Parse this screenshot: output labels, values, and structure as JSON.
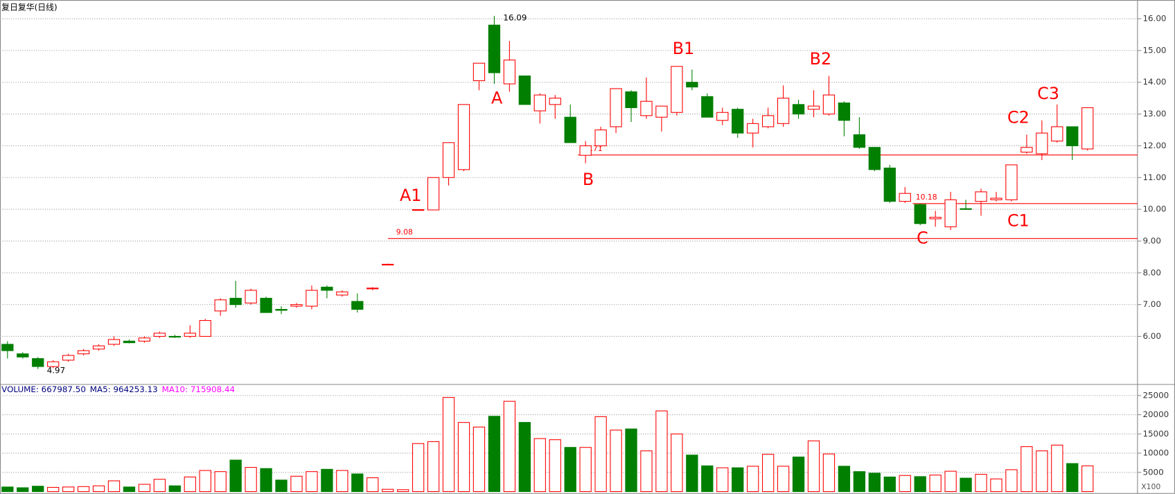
{
  "chart_data": {
    "type": "candlestick",
    "title": "复日复华(日线)",
    "open": [
      5.75,
      5.45,
      5.3,
      5.05,
      5.25,
      5.45,
      5.6,
      5.75,
      5.85,
      5.85,
      6.0,
      6.0,
      6.0,
      6.0,
      6.8,
      7.2,
      7.05,
      7.2,
      6.85,
      6.95,
      6.95,
      7.55,
      7.3,
      7.1,
      7.5,
      8.27,
      null,
      9.98,
      9.98,
      11.0,
      11.25,
      14.05,
      15.8,
      13.95,
      14.2,
      13.1,
      13.3,
      12.9,
      11.7,
      12.0,
      12.6,
      13.7,
      12.95,
      12.9,
      13.05,
      14.0,
      13.55,
      12.8,
      13.15,
      12.4,
      12.6,
      12.7,
      13.3,
      13.15,
      13.0,
      13.35,
      12.35,
      11.95,
      11.3,
      10.25,
      10.15,
      9.7,
      9.45,
      10.02,
      10.25,
      10.3,
      10.3,
      11.8,
      11.75,
      12.15,
      12.6,
      11.9
    ],
    "high": [
      5.85,
      5.5,
      5.35,
      5.25,
      5.45,
      5.6,
      5.75,
      6.0,
      5.9,
      6.0,
      6.15,
      6.05,
      6.35,
      6.55,
      7.2,
      7.75,
      7.5,
      7.25,
      6.95,
      7.05,
      7.6,
      7.6,
      7.45,
      7.35,
      7.55,
      8.29,
      null,
      10.0,
      11.0,
      12.1,
      13.3,
      14.6,
      16.09,
      15.3,
      14.2,
      13.65,
      13.6,
      13.3,
      12.15,
      12.6,
      13.8,
      13.75,
      14.15,
      13.25,
      14.5,
      14.4,
      13.65,
      13.2,
      13.2,
      12.85,
      13.2,
      13.9,
      13.45,
      13.75,
      14.2,
      13.4,
      12.9,
      11.95,
      11.4,
      10.7,
      10.18,
      9.95,
      10.55,
      10.3,
      10.65,
      10.55,
      11.4,
      12.35,
      12.8,
      13.3,
      12.6,
      13.2
    ],
    "low": [
      5.3,
      5.3,
      4.97,
      5.0,
      5.2,
      5.4,
      5.55,
      5.7,
      5.78,
      5.8,
      5.95,
      5.95,
      5.95,
      6.0,
      6.65,
      6.9,
      7.0,
      6.75,
      6.7,
      6.9,
      6.85,
      7.2,
      7.25,
      6.75,
      7.45,
      8.25,
      null,
      9.96,
      9.98,
      10.75,
      11.2,
      13.75,
      13.95,
      13.7,
      13.3,
      12.7,
      12.85,
      12.1,
      11.45,
      11.95,
      12.4,
      12.75,
      12.85,
      12.45,
      12.95,
      13.75,
      12.9,
      12.65,
      12.25,
      11.95,
      12.55,
      12.6,
      12.85,
      12.9,
      12.95,
      12.3,
      11.9,
      11.2,
      10.2,
      10.2,
      9.5,
      9.45,
      9.35,
      10.0,
      9.8,
      10.25,
      10.25,
      11.75,
      11.55,
      12.1,
      11.55,
      11.85
    ],
    "close": [
      5.55,
      5.35,
      5.05,
      5.2,
      5.4,
      5.55,
      5.7,
      5.9,
      5.8,
      5.95,
      6.1,
      5.98,
      6.1,
      6.5,
      7.15,
      7.0,
      7.45,
      6.75,
      6.82,
      7.0,
      7.45,
      7.45,
      7.4,
      6.85,
      7.52,
      8.27,
      null,
      9.99,
      11.0,
      12.1,
      13.3,
      14.6,
      14.3,
      14.7,
      13.3,
      13.6,
      13.5,
      12.1,
      12.0,
      12.5,
      13.8,
      13.2,
      13.4,
      13.25,
      14.5,
      13.85,
      12.9,
      13.05,
      12.4,
      12.7,
      12.95,
      13.5,
      13.0,
      13.25,
      13.6,
      12.8,
      11.95,
      11.25,
      10.25,
      10.5,
      9.55,
      9.75,
      10.3,
      10.0,
      10.55,
      10.35,
      11.4,
      11.95,
      12.4,
      12.6,
      12.0,
      13.2
    ],
    "up_color": "#ff0000",
    "down_color": "#007f00",
    "ylim": [
      4.51,
      16.59
    ],
    "yticks": [
      {
        "value": 6,
        "label": "6.00"
      },
      {
        "value": 7,
        "label": "7.00"
      },
      {
        "value": 8,
        "label": "8.00"
      },
      {
        "value": 9,
        "label": "9.00"
      },
      {
        "value": 10,
        "label": "10.00"
      },
      {
        "value": 11,
        "label": "11.00"
      },
      {
        "value": 12,
        "label": "12.00"
      },
      {
        "value": 13,
        "label": "13.00"
      },
      {
        "value": 14,
        "label": "14.00"
      },
      {
        "value": 15,
        "label": "15.00"
      },
      {
        "value": 16,
        "label": "16.00"
      }
    ],
    "reference_lines": [
      11.71,
      10.18,
      9.08
    ],
    "high_label": 16.09,
    "low_label": 4.97,
    "annotations": [
      "A1",
      "A",
      "B",
      "B1",
      "B2",
      "C",
      "C1",
      "C2",
      "C3"
    ],
    "volume": {
      "legend": [
        "VOLUME: 667987.50",
        "MA5: 964253.13",
        "MA10: 715908.44"
      ],
      "unit": "X100",
      "values": [
        1200,
        1000,
        1400,
        1100,
        1200,
        1300,
        1500,
        2800,
        1200,
        1900,
        3200,
        1500,
        3800,
        5500,
        5200,
        8200,
        6300,
        6000,
        3000,
        4000,
        5200,
        5800,
        5500,
        4600,
        3600,
        600,
        500,
        12500,
        13000,
        24500,
        18000,
        16800,
        19600,
        23500,
        18000,
        13800,
        13500,
        11500,
        11500,
        19500,
        16000,
        16300,
        10600,
        21000,
        15000,
        9500,
        6700,
        6200,
        6200,
        6600,
        9700,
        6600,
        9000,
        13200,
        9800,
        6600,
        5200,
        4800,
        3800,
        4200,
        3900,
        4300,
        5300,
        3500,
        4500,
        3300,
        5700,
        11700,
        10600,
        12100,
        7300,
        6700
      ],
      "ylim": [
        0,
        27300
      ],
      "yticks": [
        5000,
        10000,
        15000,
        20000,
        25000
      ]
    }
  }
}
